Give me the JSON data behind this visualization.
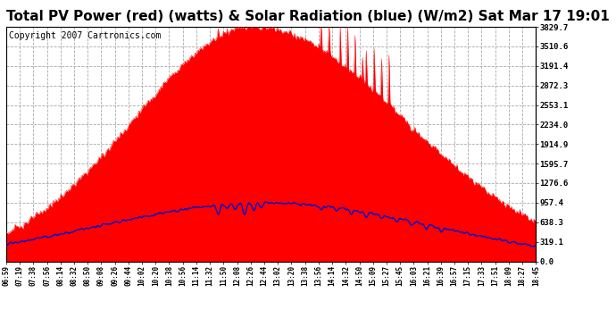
{
  "title": "Total PV Power (red) (watts) & Solar Radiation (blue) (W/m2) Sat Mar 17 19:01",
  "copyright": "Copyright 2007 Cartronics.com",
  "yticks": [
    0.0,
    319.1,
    638.3,
    957.4,
    1276.6,
    1595.7,
    1914.9,
    2234.0,
    2553.1,
    2872.3,
    3191.4,
    3510.6,
    3829.7
  ],
  "ymax": 3829.7,
  "xtick_labels": [
    "06:59",
    "07:19",
    "07:38",
    "07:56",
    "08:14",
    "08:32",
    "08:50",
    "09:08",
    "09:26",
    "09:44",
    "10:02",
    "10:20",
    "10:38",
    "10:56",
    "11:14",
    "11:32",
    "11:50",
    "12:08",
    "12:26",
    "12:44",
    "13:02",
    "13:20",
    "13:38",
    "13:56",
    "14:14",
    "14:32",
    "14:50",
    "15:09",
    "15:27",
    "15:45",
    "16:03",
    "16:21",
    "16:39",
    "16:57",
    "17:15",
    "17:33",
    "17:51",
    "18:09",
    "18:27",
    "18:45"
  ],
  "bg_color": "#ffffff",
  "plot_bg_color": "#ffffff",
  "grid_color": "#aaaaaa",
  "red_color": "#ff0000",
  "blue_color": "#0000cc",
  "title_fontsize": 11,
  "copyright_fontsize": 7
}
